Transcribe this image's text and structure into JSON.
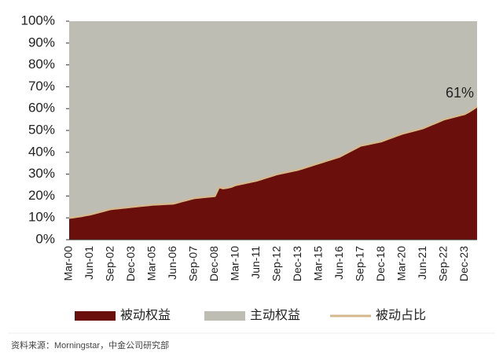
{
  "chart_data": {
    "type": "stacked-area",
    "categories": [
      "Mar-00",
      null,
      null,
      null,
      null,
      "Jun-01",
      null,
      null,
      null,
      null,
      "Sep-02",
      null,
      null,
      null,
      null,
      "Dec-03",
      null,
      null,
      null,
      null,
      "Mar-05",
      null,
      null,
      null,
      null,
      "Jun-06",
      null,
      null,
      null,
      null,
      "Sep-07",
      null,
      null,
      null,
      null,
      "Dec-08",
      null,
      null,
      null,
      null,
      "Mar-10",
      null,
      null,
      null,
      null,
      "Jun-11",
      null,
      null,
      null,
      null,
      "Sep-12",
      null,
      null,
      null,
      null,
      "Dec-13",
      null,
      null,
      null,
      null,
      "Mar-15",
      null,
      null,
      null,
      null,
      "Jun-16",
      null,
      null,
      null,
      null,
      "Sep-17",
      null,
      null,
      null,
      null,
      "Dec-18",
      null,
      null,
      null,
      null,
      "Mar-20",
      null,
      null,
      null,
      null,
      "Jun-21",
      null,
      null,
      null,
      null,
      "Sep-22",
      null,
      null,
      null,
      null,
      "Dec-23",
      null,
      null,
      null
    ],
    "series": [
      {
        "name": "被动权益",
        "color": "#6a0f0b",
        "stack": true,
        "values": [
          10,
          10.2,
          10.5,
          10.8,
          11.2,
          11.5,
          12,
          12.5,
          13,
          13.5,
          14,
          14.2,
          14.4,
          14.6,
          14.8,
          15,
          15.2,
          15.4,
          15.6,
          15.8,
          16,
          16.1,
          16.2,
          16.3,
          16.4,
          16.5,
          17,
          17.5,
          18,
          18.5,
          19,
          19.2,
          19.4,
          19.6,
          19.8,
          20,
          24,
          23.5,
          23.8,
          24.2,
          25,
          25.4,
          25.8,
          26.2,
          26.6,
          27,
          27.6,
          28.2,
          28.8,
          29.4,
          30,
          30.4,
          30.8,
          31.2,
          31.6,
          32,
          32.6,
          33.2,
          33.8,
          34.4,
          35,
          35.6,
          36.2,
          36.8,
          37.4,
          38,
          39,
          40,
          41,
          42,
          43,
          43.4,
          43.8,
          44.2,
          44.6,
          45,
          45.7,
          46.4,
          47.1,
          47.8,
          48.5,
          49,
          49.5,
          50,
          50.5,
          51,
          51.8,
          52.6,
          53.4,
          54.2,
          55,
          55.5,
          56,
          56.5,
          57,
          57.5,
          58.5,
          59.7,
          61
        ]
      },
      {
        "name": "主动权益",
        "color": "#bebdb3",
        "stack": true,
        "values": [
          90,
          89.8,
          89.5,
          89.2,
          88.8,
          88.5,
          88,
          87.5,
          87,
          86.5,
          86,
          85.8,
          85.6,
          85.4,
          85.2,
          85,
          84.8,
          84.6,
          84.4,
          84.2,
          84,
          83.9,
          83.8,
          83.7,
          83.6,
          83.5,
          83,
          82.5,
          82,
          81.5,
          81,
          80.8,
          80.6,
          80.4,
          80.2,
          80,
          76,
          76.5,
          76.2,
          75.8,
          75,
          74.6,
          74.2,
          73.8,
          73.4,
          73,
          72.4,
          71.8,
          71.2,
          70.6,
          70,
          69.6,
          69.2,
          68.8,
          68.4,
          68,
          67.4,
          66.8,
          66.2,
          65.6,
          65,
          64.4,
          63.8,
          63.2,
          62.6,
          62,
          61,
          60,
          59,
          58,
          57,
          56.6,
          56.2,
          55.8,
          55.4,
          55,
          54.3,
          53.6,
          52.9,
          52.2,
          51.5,
          51,
          50.5,
          50,
          49.5,
          49,
          48.2,
          47.4,
          46.6,
          45.8,
          45,
          44.5,
          44,
          43.5,
          43,
          42.5,
          41.5,
          40.3,
          39
        ]
      },
      {
        "name": "被动占比",
        "color": "#d6b88e",
        "stack": false,
        "values": [
          10,
          10.2,
          10.5,
          10.8,
          11.2,
          11.5,
          12,
          12.5,
          13,
          13.5,
          14,
          14.2,
          14.4,
          14.6,
          14.8,
          15,
          15.2,
          15.4,
          15.6,
          15.8,
          16,
          16.1,
          16.2,
          16.3,
          16.4,
          16.5,
          17,
          17.5,
          18,
          18.5,
          19,
          19.2,
          19.4,
          19.6,
          19.8,
          20,
          24,
          23.5,
          23.8,
          24.2,
          25,
          25.4,
          25.8,
          26.2,
          26.6,
          27,
          27.6,
          28.2,
          28.8,
          29.4,
          30,
          30.4,
          30.8,
          31.2,
          31.6,
          32,
          32.6,
          33.2,
          33.8,
          34.4,
          35,
          35.6,
          36.2,
          36.8,
          37.4,
          38,
          39,
          40,
          41,
          42,
          43,
          43.4,
          43.8,
          44.2,
          44.6,
          45,
          45.7,
          46.4,
          47.1,
          47.8,
          48.5,
          49,
          49.5,
          50,
          50.5,
          51,
          51.8,
          52.6,
          53.4,
          54.2,
          55,
          55.5,
          56,
          56.5,
          57,
          57.5,
          58.5,
          59.7,
          61
        ],
        "value_labels": [
          null,
          null,
          null,
          null,
          null,
          null,
          null,
          null,
          null,
          null,
          null,
          null,
          null,
          null,
          null,
          null,
          null,
          null,
          null,
          null,
          null,
          null,
          null,
          null,
          null,
          null,
          null,
          null,
          null,
          null,
          null,
          null,
          null,
          null,
          null,
          null,
          null,
          null,
          null,
          null,
          null,
          null,
          null,
          null,
          null,
          null,
          null,
          null,
          null,
          null,
          null,
          null,
          null,
          null,
          null,
          null,
          null,
          null,
          null,
          null,
          null,
          null,
          null,
          null,
          null,
          null,
          null,
          null,
          null,
          null,
          null,
          null,
          null,
          null,
          null,
          null,
          null,
          null,
          null,
          null,
          null,
          null,
          null,
          null,
          null,
          null,
          null,
          null,
          null,
          null,
          null,
          null,
          null,
          null,
          null,
          null,
          null,
          null,
          "61%"
        ]
      }
    ],
    "ylim": [
      0,
      100
    ],
    "yticks": [
      {
        "value": 0,
        "label": "0%"
      },
      {
        "value": 10,
        "label": "10%"
      },
      {
        "value": 20,
        "label": "20%"
      },
      {
        "value": 30,
        "label": "30%"
      },
      {
        "value": 40,
        "label": "40%"
      },
      {
        "value": 50,
        "label": "50%"
      },
      {
        "value": 60,
        "label": "60%"
      },
      {
        "value": 70,
        "label": "70%"
      },
      {
        "value": 80,
        "label": "80%"
      },
      {
        "value": 90,
        "label": "90%"
      },
      {
        "value": 100,
        "label": "100%"
      }
    ],
    "legend": "bottom",
    "source": "资料来源：Morningstar，中金公司研究部"
  }
}
